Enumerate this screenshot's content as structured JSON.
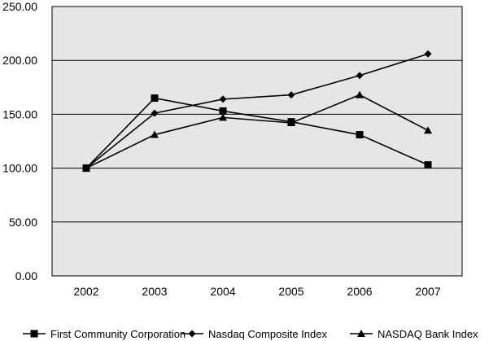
{
  "chart_data": {
    "type": "line",
    "title": "",
    "xlabel": "",
    "ylabel": "",
    "categories": [
      "2002",
      "2003",
      "2004",
      "2005",
      "2006",
      "2007"
    ],
    "ylim": [
      0,
      250
    ],
    "yticks": [
      "0.00",
      "50.00",
      "100.00",
      "150.00",
      "200.00",
      "250.00"
    ],
    "grid": "horizontal",
    "legend_position": "bottom",
    "plot_background": "#e6e6e6",
    "series": [
      {
        "name": "First Community Corporation",
        "marker": "square",
        "values": [
          100,
          165,
          153,
          143,
          131,
          103
        ]
      },
      {
        "name": "Nasdaq Composite Index",
        "marker": "diamond",
        "values": [
          100,
          151,
          164,
          168,
          186,
          206
        ]
      },
      {
        "name": "NASDAQ Bank Index",
        "marker": "triangle",
        "values": [
          100,
          131,
          147,
          142,
          168,
          135
        ]
      }
    ]
  }
}
